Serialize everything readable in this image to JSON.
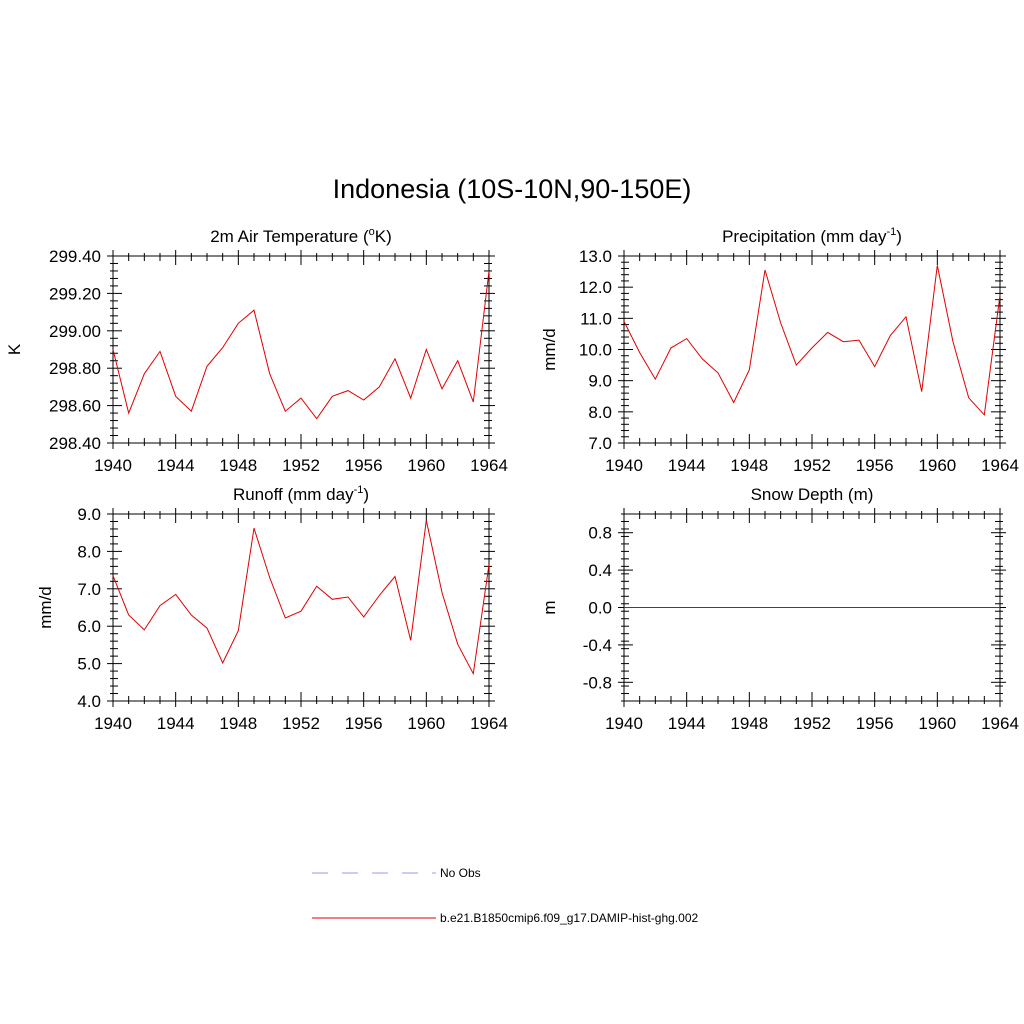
{
  "title": "Indonesia (10S-10N,90-150E)",
  "colors": {
    "series": "#e00000",
    "obs": "#9999ee",
    "axis": "#000000"
  },
  "legend": {
    "entries": [
      {
        "label": "No Obs",
        "style": "dashed",
        "color": "#9999ee"
      },
      {
        "label": "b.e21.B1850cmip6.f09_g17.DAMIP-hist-ghg.002",
        "style": "solid",
        "color": "#e00000"
      }
    ]
  },
  "chart_data": [
    {
      "type": "line",
      "title": "2m Air Temperature (°K)",
      "title_parts": [
        "2m Air Temperature (",
        "o",
        "K)"
      ],
      "ylabel": "K",
      "ylim": [
        298.4,
        299.4
      ],
      "yticks": [
        298.4,
        298.6,
        298.8,
        299.0,
        299.2,
        299.4
      ],
      "ytick_labels": [
        "298.40",
        "298.60",
        "298.80",
        "299.00",
        "299.20",
        "299.40"
      ],
      "xlim": [
        1940,
        1964
      ],
      "xticks": [
        1940,
        1944,
        1948,
        1952,
        1956,
        1960,
        1964
      ],
      "x": [
        1940,
        1941,
        1942,
        1943,
        1944,
        1945,
        1946,
        1947,
        1948,
        1949,
        1950,
        1951,
        1952,
        1953,
        1954,
        1955,
        1956,
        1957,
        1958,
        1959,
        1960,
        1961,
        1962,
        1963,
        1964
      ],
      "values": [
        298.9,
        298.56,
        298.77,
        298.89,
        298.65,
        298.57,
        298.81,
        298.91,
        299.04,
        299.11,
        298.77,
        298.57,
        298.64,
        298.53,
        298.65,
        298.68,
        298.63,
        298.7,
        298.85,
        298.64,
        298.9,
        298.69,
        298.84,
        298.62,
        299.32
      ]
    },
    {
      "type": "line",
      "title": "Precipitation (mm day-1)",
      "title_parts": [
        "Precipitation (mm day",
        "-1",
        ")"
      ],
      "ylabel": "mm/d",
      "ylim": [
        7.0,
        13.0
      ],
      "yticks": [
        7,
        8,
        9,
        10,
        11,
        12,
        13
      ],
      "ytick_labels": [
        "7.0",
        "8.0",
        "9.0",
        "10.0",
        "11.0",
        "12.0",
        "13.0"
      ],
      "xlim": [
        1940,
        1964
      ],
      "xticks": [
        1940,
        1944,
        1948,
        1952,
        1956,
        1960,
        1964
      ],
      "x": [
        1940,
        1941,
        1942,
        1943,
        1944,
        1945,
        1946,
        1947,
        1948,
        1949,
        1950,
        1951,
        1952,
        1953,
        1954,
        1955,
        1956,
        1957,
        1958,
        1959,
        1960,
        1961,
        1962,
        1963,
        1964
      ],
      "values": [
        10.9,
        9.9,
        9.05,
        10.05,
        10.35,
        9.7,
        9.25,
        8.3,
        9.35,
        12.55,
        10.85,
        9.5,
        10.05,
        10.55,
        10.25,
        10.3,
        9.45,
        10.45,
        11.05,
        8.65,
        12.7,
        10.25,
        8.45,
        7.9,
        11.75
      ]
    },
    {
      "type": "line",
      "title": "Runoff (mm day-1)",
      "title_parts": [
        "Runoff (mm day",
        "-1",
        ")"
      ],
      "ylabel": "mm/d",
      "ylim": [
        4.0,
        9.0
      ],
      "yticks": [
        4,
        5,
        6,
        7,
        8,
        9
      ],
      "ytick_labels": [
        "4.0",
        "5.0",
        "6.0",
        "7.0",
        "8.0",
        "9.0"
      ],
      "xlim": [
        1940,
        1964
      ],
      "xticks": [
        1940,
        1944,
        1948,
        1952,
        1956,
        1960,
        1964
      ],
      "x": [
        1940,
        1941,
        1942,
        1943,
        1944,
        1945,
        1946,
        1947,
        1948,
        1949,
        1950,
        1951,
        1952,
        1953,
        1954,
        1955,
        1956,
        1957,
        1958,
        1959,
        1960,
        1961,
        1962,
        1963,
        1964
      ],
      "values": [
        7.35,
        6.3,
        5.9,
        6.55,
        6.85,
        6.3,
        5.95,
        5.02,
        5.88,
        8.62,
        7.3,
        6.22,
        6.4,
        7.07,
        6.72,
        6.78,
        6.25,
        6.82,
        7.33,
        5.62,
        8.83,
        6.9,
        5.52,
        4.73,
        7.65
      ]
    },
    {
      "type": "line",
      "title": "Snow Depth (m)",
      "title_parts": [
        "Snow Depth (m)",
        "",
        ""
      ],
      "ylabel": "m",
      "ylim": [
        -1.0,
        1.0
      ],
      "yticks": [
        -0.8,
        -0.4,
        0.0,
        0.4,
        0.8
      ],
      "ytick_labels": [
        "-0.8",
        "-0.4",
        "0.0",
        "0.4",
        "0.8"
      ],
      "xlim": [
        1940,
        1964
      ],
      "xticks": [
        1940,
        1944,
        1948,
        1952,
        1956,
        1960,
        1964
      ],
      "x": [
        1940,
        1941,
        1942,
        1943,
        1944,
        1945,
        1946,
        1947,
        1948,
        1949,
        1950,
        1951,
        1952,
        1953,
        1954,
        1955,
        1956,
        1957,
        1958,
        1959,
        1960,
        1961,
        1962,
        1963,
        1964
      ],
      "values": [
        0,
        0,
        0,
        0,
        0,
        0,
        0,
        0,
        0,
        0,
        0,
        0,
        0,
        0,
        0,
        0,
        0,
        0,
        0,
        0,
        0,
        0,
        0,
        0,
        0
      ]
    }
  ]
}
